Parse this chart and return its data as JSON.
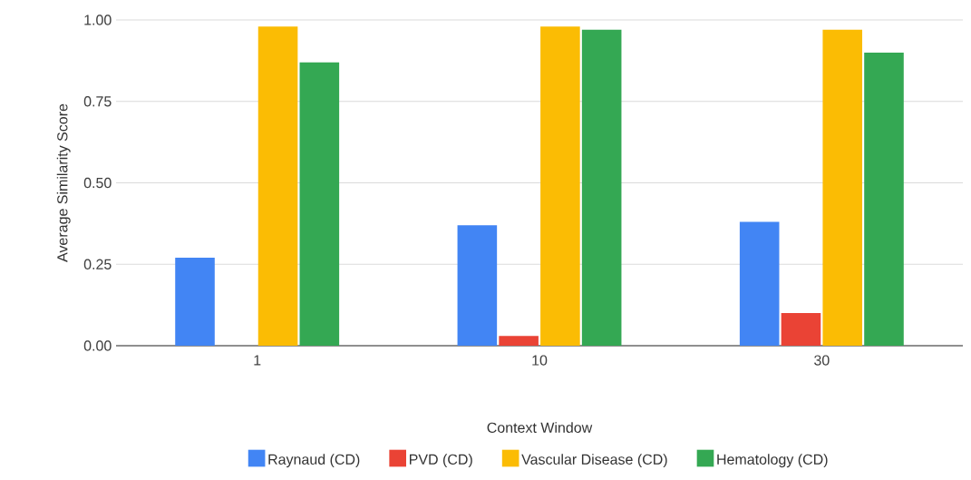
{
  "chart_data": {
    "type": "bar",
    "xlabel": "Context Window",
    "ylabel": "Average Similarity Score",
    "categories": [
      "1",
      "10",
      "30"
    ],
    "series": [
      {
        "name": "Raynaud (CD)",
        "color": "#4285f4",
        "values": [
          0.27,
          0.37,
          0.38
        ]
      },
      {
        "name": "PVD (CD)",
        "color": "#ea4335",
        "values": [
          0,
          0.03,
          0.1
        ]
      },
      {
        "name": "Vascular Disease (CD)",
        "color": "#fbbc04",
        "values": [
          0.98,
          0.98,
          0.97
        ]
      },
      {
        "name": "Hematology (CD)",
        "color": "#34a853",
        "values": [
          0.87,
          0.97,
          0.9
        ]
      }
    ],
    "ylim": [
      0,
      1
    ],
    "yticks": [
      {
        "value": 0,
        "label": "0.00"
      },
      {
        "value": 0.25,
        "label": "0.25"
      },
      {
        "value": 0.5,
        "label": "0.50"
      },
      {
        "value": 0.75,
        "label": "0.75"
      },
      {
        "value": 1,
        "label": "1.00"
      }
    ],
    "grid": "y",
    "legend": "bottom"
  }
}
